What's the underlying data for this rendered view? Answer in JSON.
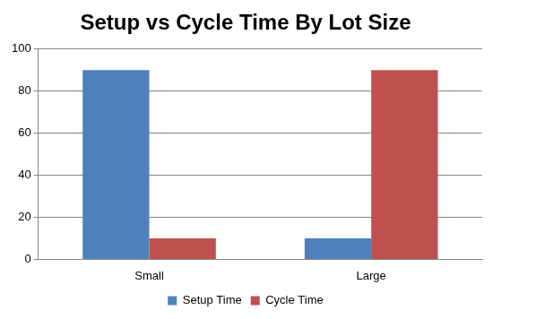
{
  "chart_data": {
    "type": "bar",
    "title": "Setup vs Cycle Time By Lot Size",
    "categories": [
      "Small",
      "Large"
    ],
    "series": [
      {
        "name": "Setup Time",
        "color": "#4f81bd",
        "values": [
          90,
          10
        ]
      },
      {
        "name": "Cycle Time",
        "color": "#c0504d",
        "values": [
          10,
          90
        ]
      }
    ],
    "ylim": [
      0,
      100
    ],
    "yticks": [
      0,
      20,
      40,
      60,
      80,
      100
    ],
    "grid": true,
    "legend": "bottom"
  }
}
